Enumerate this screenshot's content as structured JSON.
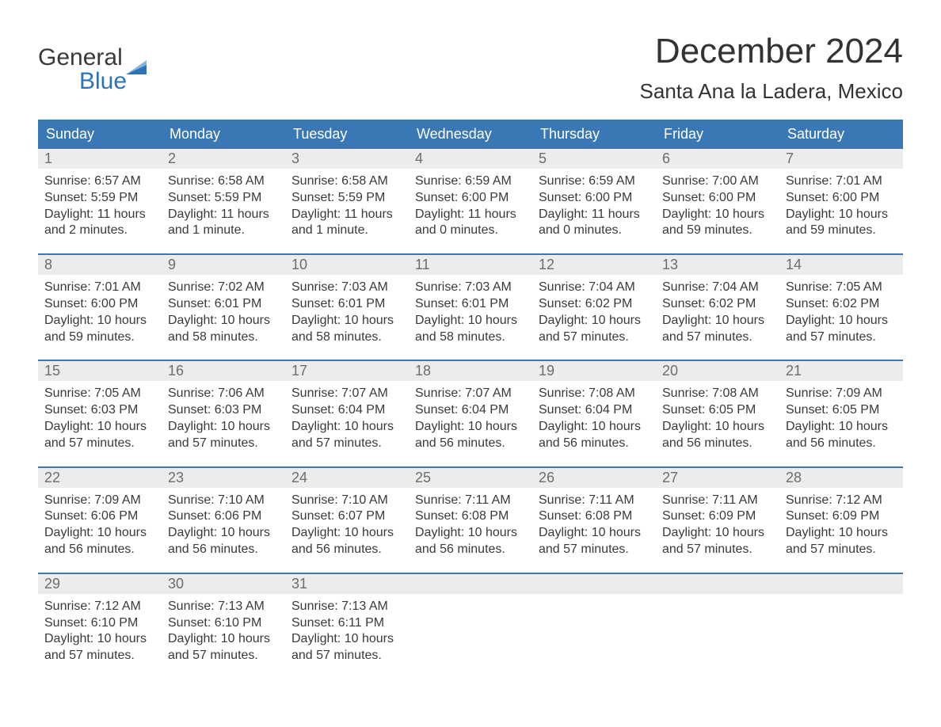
{
  "colors": {
    "header_bg": "#3a77b5",
    "header_text": "#ffffff",
    "daynum_bg": "#ececec",
    "daynum_text": "#6d6d6d",
    "body_text": "#3a3a3a",
    "logo_blue": "#2f73b5",
    "week_border": "#3a77b5",
    "page_bg": "#ffffff"
  },
  "typography": {
    "month_title_fontsize": 44,
    "location_fontsize": 26,
    "weekday_fontsize": 18,
    "daynum_fontsize": 18,
    "body_fontsize": 16,
    "font_family": "Arial, Helvetica, sans-serif"
  },
  "logo": {
    "line1": "General",
    "line2": "Blue"
  },
  "title": "December 2024",
  "location": "Santa Ana la Ladera, Mexico",
  "weekdays": [
    "Sunday",
    "Monday",
    "Tuesday",
    "Wednesday",
    "Thursday",
    "Friday",
    "Saturday"
  ],
  "weeks": [
    [
      {
        "num": "1",
        "sunrise": "Sunrise: 6:57 AM",
        "sunset": "Sunset: 5:59 PM",
        "day1": "Daylight: 11 hours",
        "day2": "and 2 minutes."
      },
      {
        "num": "2",
        "sunrise": "Sunrise: 6:58 AM",
        "sunset": "Sunset: 5:59 PM",
        "day1": "Daylight: 11 hours",
        "day2": "and 1 minute."
      },
      {
        "num": "3",
        "sunrise": "Sunrise: 6:58 AM",
        "sunset": "Sunset: 5:59 PM",
        "day1": "Daylight: 11 hours",
        "day2": "and 1 minute."
      },
      {
        "num": "4",
        "sunrise": "Sunrise: 6:59 AM",
        "sunset": "Sunset: 6:00 PM",
        "day1": "Daylight: 11 hours",
        "day2": "and 0 minutes."
      },
      {
        "num": "5",
        "sunrise": "Sunrise: 6:59 AM",
        "sunset": "Sunset: 6:00 PM",
        "day1": "Daylight: 11 hours",
        "day2": "and 0 minutes."
      },
      {
        "num": "6",
        "sunrise": "Sunrise: 7:00 AM",
        "sunset": "Sunset: 6:00 PM",
        "day1": "Daylight: 10 hours",
        "day2": "and 59 minutes."
      },
      {
        "num": "7",
        "sunrise": "Sunrise: 7:01 AM",
        "sunset": "Sunset: 6:00 PM",
        "day1": "Daylight: 10 hours",
        "day2": "and 59 minutes."
      }
    ],
    [
      {
        "num": "8",
        "sunrise": "Sunrise: 7:01 AM",
        "sunset": "Sunset: 6:00 PM",
        "day1": "Daylight: 10 hours",
        "day2": "and 59 minutes."
      },
      {
        "num": "9",
        "sunrise": "Sunrise: 7:02 AM",
        "sunset": "Sunset: 6:01 PM",
        "day1": "Daylight: 10 hours",
        "day2": "and 58 minutes."
      },
      {
        "num": "10",
        "sunrise": "Sunrise: 7:03 AM",
        "sunset": "Sunset: 6:01 PM",
        "day1": "Daylight: 10 hours",
        "day2": "and 58 minutes."
      },
      {
        "num": "11",
        "sunrise": "Sunrise: 7:03 AM",
        "sunset": "Sunset: 6:01 PM",
        "day1": "Daylight: 10 hours",
        "day2": "and 58 minutes."
      },
      {
        "num": "12",
        "sunrise": "Sunrise: 7:04 AM",
        "sunset": "Sunset: 6:02 PM",
        "day1": "Daylight: 10 hours",
        "day2": "and 57 minutes."
      },
      {
        "num": "13",
        "sunrise": "Sunrise: 7:04 AM",
        "sunset": "Sunset: 6:02 PM",
        "day1": "Daylight: 10 hours",
        "day2": "and 57 minutes."
      },
      {
        "num": "14",
        "sunrise": "Sunrise: 7:05 AM",
        "sunset": "Sunset: 6:02 PM",
        "day1": "Daylight: 10 hours",
        "day2": "and 57 minutes."
      }
    ],
    [
      {
        "num": "15",
        "sunrise": "Sunrise: 7:05 AM",
        "sunset": "Sunset: 6:03 PM",
        "day1": "Daylight: 10 hours",
        "day2": "and 57 minutes."
      },
      {
        "num": "16",
        "sunrise": "Sunrise: 7:06 AM",
        "sunset": "Sunset: 6:03 PM",
        "day1": "Daylight: 10 hours",
        "day2": "and 57 minutes."
      },
      {
        "num": "17",
        "sunrise": "Sunrise: 7:07 AM",
        "sunset": "Sunset: 6:04 PM",
        "day1": "Daylight: 10 hours",
        "day2": "and 57 minutes."
      },
      {
        "num": "18",
        "sunrise": "Sunrise: 7:07 AM",
        "sunset": "Sunset: 6:04 PM",
        "day1": "Daylight: 10 hours",
        "day2": "and 56 minutes."
      },
      {
        "num": "19",
        "sunrise": "Sunrise: 7:08 AM",
        "sunset": "Sunset: 6:04 PM",
        "day1": "Daylight: 10 hours",
        "day2": "and 56 minutes."
      },
      {
        "num": "20",
        "sunrise": "Sunrise: 7:08 AM",
        "sunset": "Sunset: 6:05 PM",
        "day1": "Daylight: 10 hours",
        "day2": "and 56 minutes."
      },
      {
        "num": "21",
        "sunrise": "Sunrise: 7:09 AM",
        "sunset": "Sunset: 6:05 PM",
        "day1": "Daylight: 10 hours",
        "day2": "and 56 minutes."
      }
    ],
    [
      {
        "num": "22",
        "sunrise": "Sunrise: 7:09 AM",
        "sunset": "Sunset: 6:06 PM",
        "day1": "Daylight: 10 hours",
        "day2": "and 56 minutes."
      },
      {
        "num": "23",
        "sunrise": "Sunrise: 7:10 AM",
        "sunset": "Sunset: 6:06 PM",
        "day1": "Daylight: 10 hours",
        "day2": "and 56 minutes."
      },
      {
        "num": "24",
        "sunrise": "Sunrise: 7:10 AM",
        "sunset": "Sunset: 6:07 PM",
        "day1": "Daylight: 10 hours",
        "day2": "and 56 minutes."
      },
      {
        "num": "25",
        "sunrise": "Sunrise: 7:11 AM",
        "sunset": "Sunset: 6:08 PM",
        "day1": "Daylight: 10 hours",
        "day2": "and 56 minutes."
      },
      {
        "num": "26",
        "sunrise": "Sunrise: 7:11 AM",
        "sunset": "Sunset: 6:08 PM",
        "day1": "Daylight: 10 hours",
        "day2": "and 57 minutes."
      },
      {
        "num": "27",
        "sunrise": "Sunrise: 7:11 AM",
        "sunset": "Sunset: 6:09 PM",
        "day1": "Daylight: 10 hours",
        "day2": "and 57 minutes."
      },
      {
        "num": "28",
        "sunrise": "Sunrise: 7:12 AM",
        "sunset": "Sunset: 6:09 PM",
        "day1": "Daylight: 10 hours",
        "day2": "and 57 minutes."
      }
    ],
    [
      {
        "num": "29",
        "sunrise": "Sunrise: 7:12 AM",
        "sunset": "Sunset: 6:10 PM",
        "day1": "Daylight: 10 hours",
        "day2": "and 57 minutes."
      },
      {
        "num": "30",
        "sunrise": "Sunrise: 7:13 AM",
        "sunset": "Sunset: 6:10 PM",
        "day1": "Daylight: 10 hours",
        "day2": "and 57 minutes."
      },
      {
        "num": "31",
        "sunrise": "Sunrise: 7:13 AM",
        "sunset": "Sunset: 6:11 PM",
        "day1": "Daylight: 10 hours",
        "day2": "and 57 minutes."
      },
      {
        "empty": true
      },
      {
        "empty": true
      },
      {
        "empty": true
      },
      {
        "empty": true
      }
    ]
  ]
}
